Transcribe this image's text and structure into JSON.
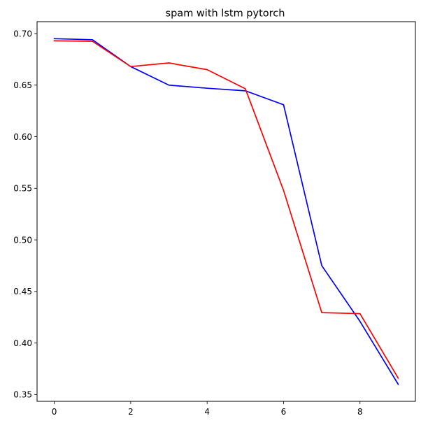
{
  "chart_data": {
    "type": "line",
    "title": "spam with lstm pytorch",
    "xlabel": "",
    "ylabel": "",
    "x": [
      0,
      1,
      2,
      3,
      4,
      5,
      6,
      7,
      8,
      9
    ],
    "xlim": [
      -0.45,
      9.45
    ],
    "ylim": [
      0.3435,
      0.7115
    ],
    "x_ticks": [
      0,
      2,
      4,
      6,
      8
    ],
    "x_tick_labels": [
      "0",
      "2",
      "4",
      "6",
      "8"
    ],
    "y_ticks": [
      0.35,
      0.4,
      0.45,
      0.5,
      0.55,
      0.6,
      0.65,
      0.7
    ],
    "y_tick_labels": [
      "0.35",
      "0.40",
      "0.45",
      "0.50",
      "0.55",
      "0.60",
      "0.65",
      "0.70"
    ],
    "grid": false,
    "legend": "none",
    "series": [
      {
        "color": "#0000ff",
        "values": [
          0.695,
          0.694,
          0.668,
          0.65,
          0.647,
          0.6445,
          0.631,
          0.475,
          0.421,
          0.36
        ]
      },
      {
        "color": "#ff0000",
        "values": [
          0.693,
          0.6925,
          0.668,
          0.6715,
          0.665,
          0.6465,
          0.548,
          0.4295,
          0.4285,
          0.366
        ]
      }
    ]
  }
}
